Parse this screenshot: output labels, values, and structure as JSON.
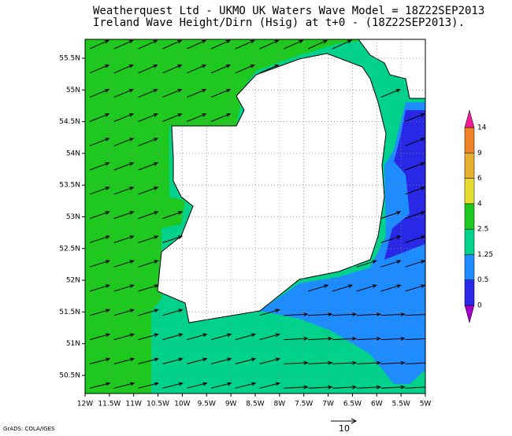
{
  "header": {
    "line1": "Weatherquest Ltd - UKMO UK Waters Wave Model = 18Z22SEP2013",
    "line2": "Ireland Wave Height/Dirn (Hsig) at t+0 - (18Z22SEP2013)."
  },
  "map": {
    "lon_labels": [
      "12W",
      "11.5W",
      "11W",
      "10.5W",
      "10W",
      "9.5W",
      "9W",
      "8.5W",
      "8W",
      "7.5W",
      "7W",
      "6.5W",
      "6W",
      "5.5W",
      "5W"
    ],
    "lat_labels": [
      "55.5N",
      "55N",
      "54.5N",
      "54N",
      "53.5N",
      "53N",
      "52.5N",
      "52N",
      "51.5N",
      "51N",
      "50.5N"
    ]
  },
  "colorbar": {
    "levels": [
      0,
      0.5,
      1.25,
      2.5,
      4,
      6,
      9,
      14
    ],
    "colors": [
      "#a000c8",
      "#2828e6",
      "#1e8cff",
      "#00d28c",
      "#1ec81e",
      "#e6dc32",
      "#e6af2d",
      "#f08228",
      "#f01e96"
    ]
  },
  "vector_scale": {
    "label": "10"
  },
  "footer": "GrADS: COLA/IGES"
}
